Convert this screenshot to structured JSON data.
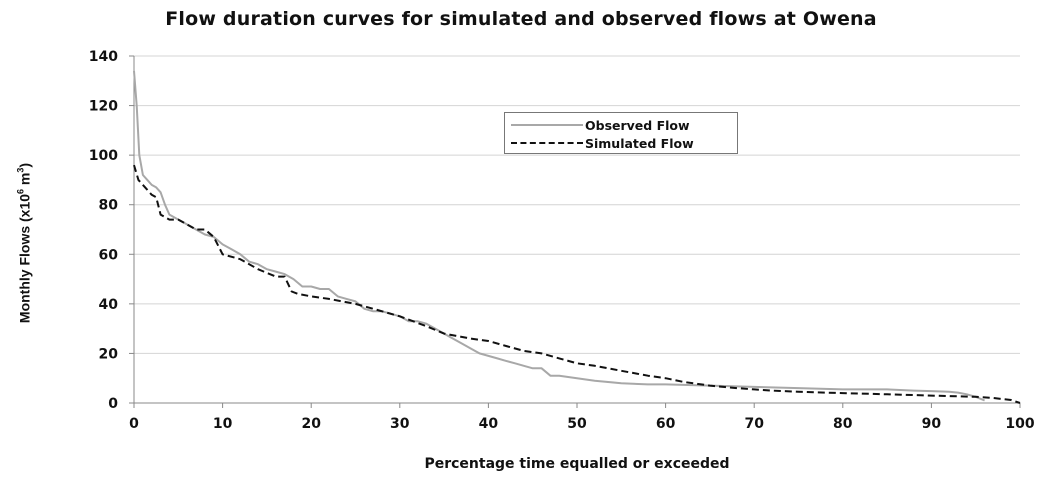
{
  "chart_data": {
    "type": "line",
    "title": "Flow duration curves for simulated and observed flows at Owena",
    "xlabel": "Percentage time equalled or exceeded",
    "ylabel_main": "Monthly Flows (x10",
    "ylabel_sup": "6",
    "ylabel_unit": " m",
    "ylabel_unit_sup": "3",
    "ylabel_close": ")",
    "xlim": [
      0,
      100
    ],
    "ylim": [
      0,
      140
    ],
    "xticks": [
      0,
      10,
      20,
      30,
      40,
      50,
      60,
      70,
      80,
      90,
      100
    ],
    "yticks": [
      0,
      20,
      40,
      60,
      80,
      100,
      120,
      140
    ],
    "grid": "horizontal",
    "legend_position": "upper-center",
    "series": [
      {
        "name": "Observed Flow",
        "color": "#a8a8a8",
        "style": "solid",
        "x": [
          0,
          0.3,
          0.6,
          1,
          1.5,
          2,
          2.5,
          3,
          3.5,
          4,
          5,
          6,
          7,
          8,
          9,
          10,
          11,
          12,
          13,
          14,
          15,
          16,
          17,
          18,
          19,
          20,
          21,
          22,
          23,
          24,
          25,
          26,
          27,
          28,
          29,
          30,
          31,
          32,
          33,
          34,
          35,
          36,
          37,
          38,
          39,
          40,
          41,
          42,
          43,
          44,
          45,
          46,
          47,
          48,
          50,
          52,
          55,
          58,
          60,
          65,
          70,
          75,
          80,
          85,
          88,
          90,
          92,
          93,
          94,
          95,
          96
        ],
        "values": [
          134,
          120,
          100,
          92,
          90,
          88,
          87,
          85,
          80,
          76,
          74,
          72,
          70,
          68,
          67,
          64,
          62,
          60,
          57,
          56,
          54,
          53,
          52,
          50,
          47,
          47,
          46,
          46,
          43,
          42,
          41,
          38,
          37,
          37,
          36,
          35,
          33,
          33,
          32,
          30,
          28,
          26,
          24,
          22,
          20,
          19,
          18,
          17,
          16,
          15,
          14,
          14,
          11,
          11,
          10,
          9,
          8,
          7.5,
          7.5,
          7,
          6.5,
          6,
          5.5,
          5.5,
          5,
          4.8,
          4.5,
          4.2,
          3.5,
          2.5,
          1
        ]
      },
      {
        "name": "Simulated Flow",
        "color": "#111111",
        "style": "dashed",
        "x": [
          0,
          0.5,
          1,
          1.5,
          2,
          2.5,
          3,
          4,
          5,
          6,
          7,
          8,
          9,
          10,
          12,
          14,
          16,
          17,
          17.8,
          18.5,
          20,
          22,
          25,
          27,
          30,
          33,
          35,
          38,
          40,
          42,
          44,
          46,
          48,
          50,
          52,
          55,
          58,
          60,
          62,
          65,
          68,
          70,
          72,
          75,
          80,
          85,
          90,
          95,
          97,
          99,
          100
        ],
        "values": [
          96,
          90,
          88,
          86,
          84,
          83,
          76,
          74,
          74,
          72,
          70,
          70,
          67,
          60,
          58,
          54,
          51,
          51,
          45,
          44,
          43,
          42,
          40,
          38,
          35,
          31,
          28,
          26,
          25,
          23,
          21,
          20,
          18,
          16,
          15,
          13,
          11,
          10,
          8.5,
          7,
          6,
          5.5,
          5,
          4.5,
          4,
          3.5,
          3,
          2.5,
          2,
          1.2,
          0
        ]
      }
    ]
  }
}
